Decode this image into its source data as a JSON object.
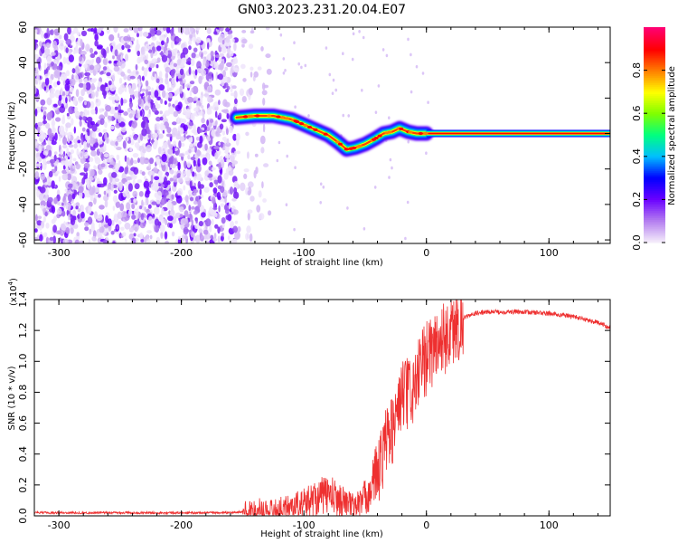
{
  "title": "GN03.2023.231.20.04.E07",
  "chart_data": [
    {
      "type": "heatmap",
      "xlabel": "Height of straight line (km)",
      "ylabel": "Frequency (Hz)",
      "xlim": [
        -320,
        150
      ],
      "ylim": [
        -62,
        60
      ],
      "x_ticks": [
        "-300",
        "-200",
        "-100",
        "0",
        "100"
      ],
      "x_tick_values": [
        -300,
        -200,
        -100,
        0,
        100
      ],
      "y_ticks": [
        "-60",
        "-40",
        "-20",
        "0",
        "20",
        "40",
        "60"
      ],
      "y_tick_values": [
        -60,
        -40,
        -20,
        0,
        20,
        40,
        60
      ],
      "colorbar": {
        "label": "Normalized spectral amplitude",
        "range": [
          0,
          1
        ],
        "ticks": [
          "0.0",
          "0.2",
          "0.4",
          "0.6",
          "0.8"
        ],
        "tick_values": [
          0,
          0.2,
          0.4,
          0.6,
          0.8
        ],
        "colors": [
          "#f4ecfa",
          "#b37cf0",
          "#6a00ff",
          "#0000ff",
          "#00bfff",
          "#00ff80",
          "#7fff00",
          "#ffff00",
          "#ff8000",
          "#ff0000",
          "#ff0070"
        ]
      },
      "noise_region_x": [
        -320,
        -128
      ],
      "ridge": [
        {
          "x": -155,
          "y": 9
        },
        {
          "x": -140,
          "y": 10
        },
        {
          "x": -125,
          "y": 10
        },
        {
          "x": -110,
          "y": 8
        },
        {
          "x": -100,
          "y": 5
        },
        {
          "x": -90,
          "y": 2
        },
        {
          "x": -80,
          "y": -1
        },
        {
          "x": -72,
          "y": -5
        },
        {
          "x": -65,
          "y": -9
        },
        {
          "x": -58,
          "y": -8
        },
        {
          "x": -50,
          "y": -6
        },
        {
          "x": -42,
          "y": -3
        },
        {
          "x": -35,
          "y": 0
        },
        {
          "x": -28,
          "y": 1
        },
        {
          "x": -22,
          "y": 3
        },
        {
          "x": -15,
          "y": 1
        },
        {
          "x": -8,
          "y": 0
        },
        {
          "x": 0,
          "y": 0
        },
        {
          "x": 150,
          "y": 0
        }
      ]
    },
    {
      "type": "line",
      "xlabel": "Height of straight line (km)",
      "ylabel": "SNR (10 * v/v)",
      "y_multiplier": "(x10",
      "y_multiplier_exp": "4",
      "y_multiplier_close": ")",
      "xlim": [
        -320,
        150
      ],
      "ylim": [
        0,
        1.4
      ],
      "x_ticks": [
        "-300",
        "-200",
        "-100",
        "0",
        "100"
      ],
      "x_tick_values": [
        -300,
        -200,
        -100,
        0,
        100
      ],
      "y_ticks": [
        "0.0",
        "0.2",
        "0.4",
        "0.6",
        "0.8",
        "1.0",
        "1.2",
        "1.4"
      ],
      "y_tick_values": [
        0,
        0.2,
        0.4,
        0.6,
        0.8,
        1.0,
        1.2,
        1.4
      ],
      "color": "#ee3030",
      "series": [
        {
          "x": [
            -320,
            -300,
            -250,
            -200,
            -160,
            -145,
            -140,
            -130,
            -120,
            -110,
            -100,
            -90,
            -80,
            -75,
            -70,
            -65,
            -60,
            -55,
            -50,
            -45,
            -40,
            -35,
            -30,
            -25,
            -20,
            -15,
            -10,
            -5,
            0,
            5,
            10,
            15,
            20,
            30,
            40,
            50,
            60,
            80,
            100,
            120,
            140,
            150
          ],
          "y": [
            0.02,
            0.02,
            0.02,
            0.02,
            0.02,
            0.03,
            0.04,
            0.03,
            0.04,
            0.06,
            0.08,
            0.12,
            0.14,
            0.12,
            0.1,
            0.08,
            0.06,
            0.08,
            0.12,
            0.18,
            0.3,
            0.45,
            0.55,
            0.65,
            0.8,
            0.8,
            0.85,
            0.95,
            1.05,
            1.1,
            1.15,
            1.18,
            1.22,
            1.28,
            1.31,
            1.32,
            1.32,
            1.32,
            1.31,
            1.29,
            1.25,
            1.22
          ]
        }
      ]
    }
  ]
}
